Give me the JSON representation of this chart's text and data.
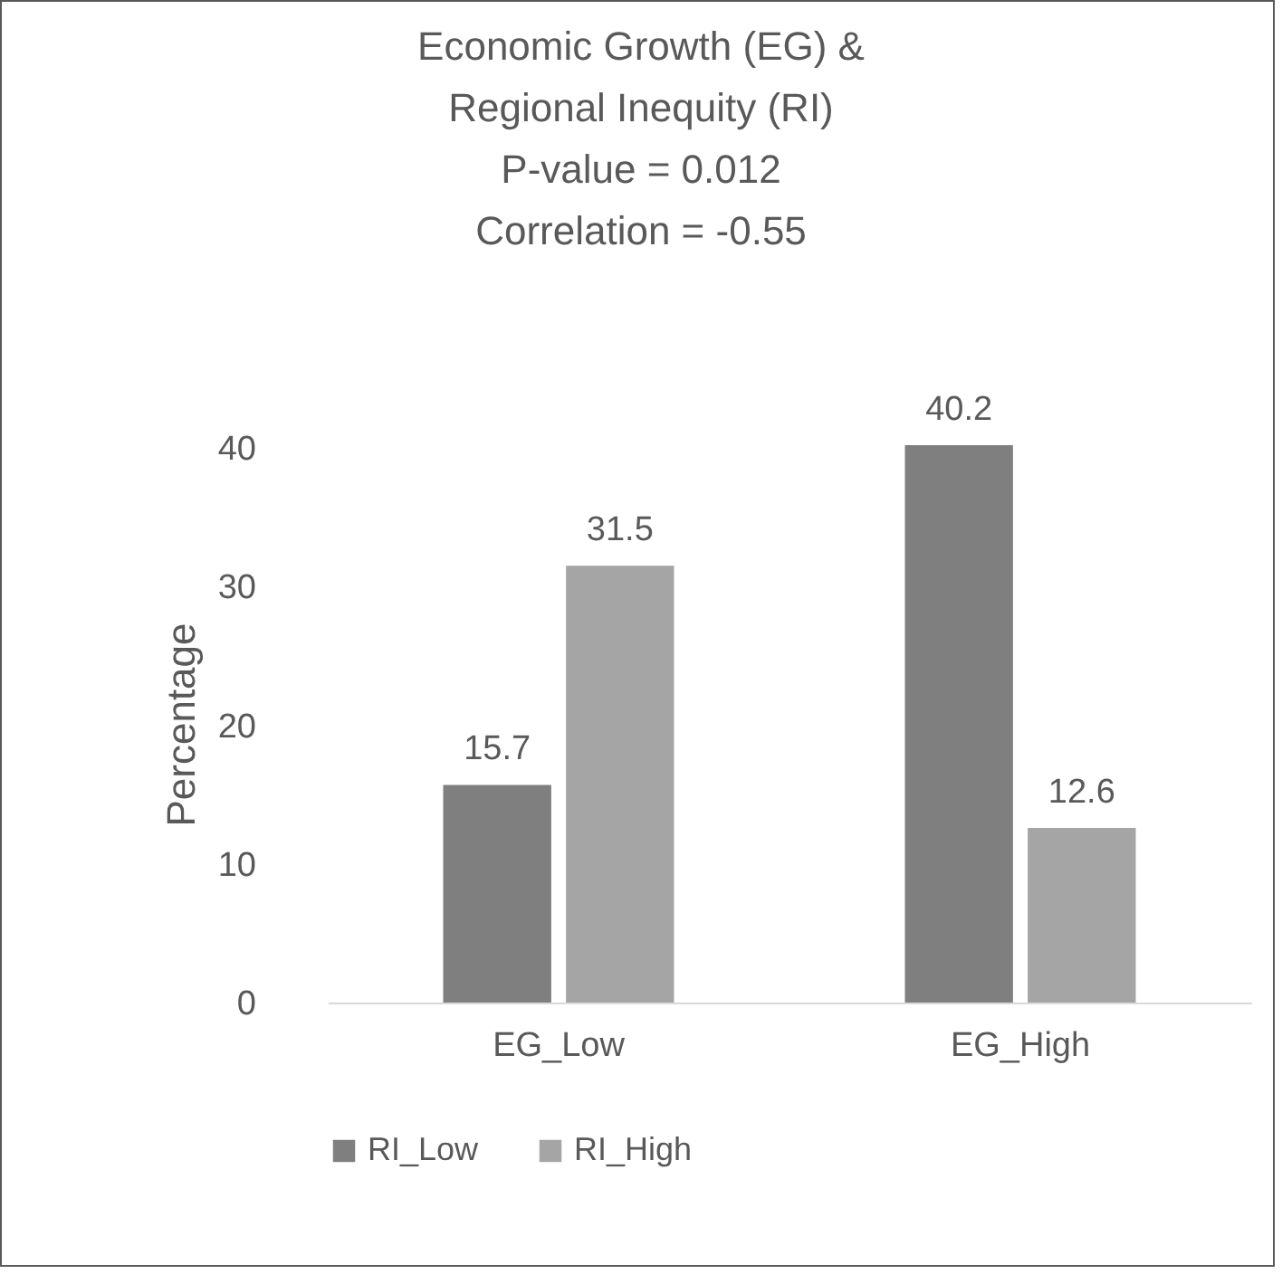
{
  "chart_data": {
    "type": "bar",
    "title": "Economic Growth (EG) &\nRegional Inequity (RI)\nP-value = 0.012\nCorrelation = -0.55",
    "ylabel": "Percentage",
    "categories": [
      "EG_Low",
      "EG_High"
    ],
    "series": [
      {
        "name": "RI_Low",
        "color": "#7f7f7f",
        "values": [
          15.7,
          40.2
        ]
      },
      {
        "name": "RI_High",
        "color": "#a5a5a5",
        "values": [
          31.5,
          12.6
        ]
      }
    ],
    "ylim": [
      0,
      40.2
    ],
    "yticks": [
      0,
      10,
      20,
      30,
      40
    ],
    "data_labels": true,
    "legend": "bottom",
    "grid": false
  }
}
